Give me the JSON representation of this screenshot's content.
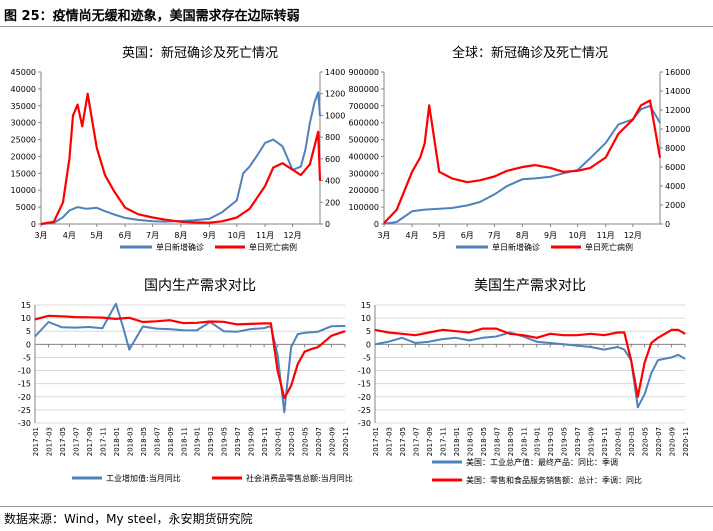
{
  "header": {
    "figure_title": "图 25：疫情尚无缓和迹象，美国需求存在边际转弱"
  },
  "footer": {
    "source": "数据来源：Wind，My steel，永安期货研究院"
  },
  "colors": {
    "blue": "#4f81bd",
    "red": "#ff0000",
    "axis": "#868686",
    "grid": "#d9d9d9"
  },
  "chart_data": [
    {
      "type": "line",
      "title": "英国：新冠确诊及死亡情况",
      "x_start": "2020-03-01",
      "x_end": "2020-12-31",
      "x_ticks": [
        "3月",
        "4月",
        "5月",
        "6月",
        "7月",
        "8月",
        "9月",
        "10月",
        "11月",
        "12月"
      ],
      "y_left": {
        "ylim": [
          0,
          45000
        ],
        "ticks": [
          "0",
          "5000",
          "10000",
          "15000",
          "20000",
          "25000",
          "30000",
          "35000",
          "40000",
          "45000"
        ]
      },
      "y_right": {
        "ylim": [
          0,
          1400
        ],
        "ticks": [
          "0",
          "200",
          "400",
          "600",
          "800",
          "1000",
          "1200",
          "1400"
        ]
      },
      "series": [
        {
          "name": "单日新增确诊",
          "color": "#4f81bd",
          "axis": "left",
          "x": [
            "2020-03-01",
            "2020-03-15",
            "2020-03-25",
            "2020-04-01",
            "2020-04-10",
            "2020-04-20",
            "2020-05-01",
            "2020-05-10",
            "2020-05-20",
            "2020-06-01",
            "2020-06-15",
            "2020-07-01",
            "2020-07-15",
            "2020-08-01",
            "2020-08-15",
            "2020-09-01",
            "2020-09-15",
            "2020-10-01",
            "2020-10-08",
            "2020-10-15",
            "2020-10-25",
            "2020-11-01",
            "2020-11-10",
            "2020-11-20",
            "2020-12-01",
            "2020-12-10",
            "2020-12-15",
            "2020-12-20",
            "2020-12-25",
            "2020-12-29",
            "2020-12-31"
          ],
          "values": [
            0,
            300,
            2000,
            4000,
            5000,
            4500,
            4800,
            3800,
            2800,
            1800,
            1200,
            800,
            700,
            900,
            1100,
            1500,
            3500,
            7000,
            15000,
            17000,
            21000,
            24000,
            25000,
            23000,
            16000,
            17000,
            22000,
            30000,
            36000,
            39000,
            32000
          ]
        },
        {
          "name": "单日死亡病例",
          "color": "#ff0000",
          "axis": "right",
          "x": [
            "2020-03-01",
            "2020-03-15",
            "2020-03-25",
            "2020-04-01",
            "2020-04-05",
            "2020-04-10",
            "2020-04-15",
            "2020-04-21",
            "2020-05-01",
            "2020-05-10",
            "2020-05-20",
            "2020-06-01",
            "2020-06-15",
            "2020-07-01",
            "2020-07-15",
            "2020-08-01",
            "2020-08-15",
            "2020-09-01",
            "2020-09-15",
            "2020-10-01",
            "2020-10-15",
            "2020-11-01",
            "2020-11-10",
            "2020-11-20",
            "2020-12-01",
            "2020-12-10",
            "2020-12-20",
            "2020-12-29",
            "2020-12-31"
          ],
          "values": [
            0,
            20,
            200,
            600,
            1000,
            1100,
            900,
            1200,
            700,
            450,
            300,
            150,
            90,
            60,
            40,
            20,
            15,
            12,
            25,
            60,
            140,
            350,
            520,
            560,
            500,
            450,
            550,
            850,
            400
          ]
        }
      ]
    },
    {
      "type": "line",
      "title": "全球：新冠确诊及死亡情况",
      "x_start": "2020-03-01",
      "x_end": "2020-12-31",
      "x_ticks": [
        "3月",
        "4月",
        "5月",
        "6月",
        "7月",
        "8月",
        "9月",
        "10月",
        "11月",
        "12月"
      ],
      "y_left": {
        "ylim": [
          0,
          900000
        ],
        "ticks": [
          "0",
          "100000",
          "200000",
          "300000",
          "400000",
          "500000",
          "600000",
          "700000",
          "800000",
          "900000"
        ]
      },
      "y_right": {
        "ylim": [
          0,
          16000
        ],
        "ticks": [
          "0",
          "2000",
          "4000",
          "6000",
          "8000",
          "10000",
          "12000",
          "14000",
          "16000"
        ]
      },
      "series": [
        {
          "name": "单日新增确诊",
          "color": "#4f81bd",
          "axis": "left",
          "x": [
            "2020-03-01",
            "2020-03-15",
            "2020-04-01",
            "2020-04-15",
            "2020-05-01",
            "2020-05-15",
            "2020-06-01",
            "2020-06-15",
            "2020-07-01",
            "2020-07-15",
            "2020-08-01",
            "2020-08-15",
            "2020-09-01",
            "2020-09-15",
            "2020-10-01",
            "2020-10-15",
            "2020-11-01",
            "2020-11-15",
            "2020-12-01",
            "2020-12-10",
            "2020-12-20",
            "2020-12-31"
          ],
          "values": [
            2000,
            12000,
            75000,
            85000,
            90000,
            95000,
            110000,
            130000,
            175000,
            225000,
            265000,
            270000,
            280000,
            300000,
            320000,
            390000,
            480000,
            590000,
            620000,
            680000,
            700000,
            600000
          ]
        },
        {
          "name": "单日死亡病例",
          "color": "#ff0000",
          "axis": "right",
          "x": [
            "2020-03-01",
            "2020-03-15",
            "2020-04-01",
            "2020-04-10",
            "2020-04-15",
            "2020-04-20",
            "2020-05-01",
            "2020-05-15",
            "2020-06-01",
            "2020-06-15",
            "2020-07-01",
            "2020-07-15",
            "2020-08-01",
            "2020-08-15",
            "2020-09-01",
            "2020-09-15",
            "2020-10-01",
            "2020-10-15",
            "2020-11-01",
            "2020-11-15",
            "2020-12-01",
            "2020-12-10",
            "2020-12-20",
            "2020-12-31"
          ],
          "values": [
            100,
            1500,
            5500,
            7000,
            8500,
            12500,
            5500,
            4800,
            4400,
            4600,
            5000,
            5600,
            6000,
            6200,
            5900,
            5500,
            5600,
            5900,
            7000,
            9500,
            11000,
            12500,
            13000,
            7000
          ]
        }
      ]
    },
    {
      "type": "line",
      "title": "国内生产需求对比",
      "x_labels": [
        "2017-01",
        "2017-03",
        "2017-05",
        "2017-07",
        "2017-09",
        "2017-11",
        "2018-01",
        "2018-03",
        "2018-05",
        "2018-07",
        "2018-09",
        "2018-11",
        "2019-01",
        "2019-03",
        "2019-05",
        "2019-07",
        "2019-09",
        "2019-11",
        "2020-01",
        "2020-03",
        "2020-05",
        "2020-07",
        "2020-09",
        "2020-11"
      ],
      "ylim": [
        -30,
        15
      ],
      "y_ticks": [
        "-30",
        "-25",
        "-20",
        "-15",
        "-10",
        "-5",
        "0",
        "5",
        "10",
        "15"
      ],
      "series": [
        {
          "name": "工业增加值:当月同比",
          "color": "#4f81bd",
          "x": [
            "2017-01",
            "2017-03",
            "2017-05",
            "2017-07",
            "2017-09",
            "2017-11",
            "2018-01",
            "2018-02",
            "2018-03",
            "2018-05",
            "2018-07",
            "2018-09",
            "2018-11",
            "2019-01",
            "2019-03",
            "2019-05",
            "2019-07",
            "2019-09",
            "2019-11",
            "2019-12",
            "2020-01",
            "2020-02",
            "2020-03",
            "2020-04",
            "2020-05",
            "2020-07",
            "2020-09",
            "2020-11"
          ],
          "values": [
            3,
            8.5,
            6.5,
            6.4,
            6.6,
            6.1,
            15.5,
            7.2,
            -2,
            6.8,
            6,
            5.8,
            5.4,
            5.3,
            8.5,
            5,
            4.8,
            5.8,
            6.2,
            6.9,
            -4,
            -25.9,
            -1.1,
            3.9,
            4.4,
            4.8,
            6.9,
            7
          ]
        },
        {
          "name": "社会消费品零售总额:当月同比",
          "color": "#ff0000",
          "x": [
            "2017-01",
            "2017-03",
            "2017-05",
            "2017-07",
            "2017-09",
            "2017-11",
            "2018-01",
            "2018-03",
            "2018-05",
            "2018-07",
            "2018-09",
            "2018-11",
            "2019-01",
            "2019-03",
            "2019-05",
            "2019-07",
            "2019-09",
            "2019-11",
            "2019-12",
            "2020-01",
            "2020-02",
            "2020-03",
            "2020-04",
            "2020-05",
            "2020-06",
            "2020-07",
            "2020-09",
            "2020-11"
          ],
          "values": [
            9.5,
            10.9,
            10.7,
            10.4,
            10.3,
            10.2,
            9.7,
            10.1,
            8.5,
            8.8,
            9.2,
            8.1,
            8.2,
            8.7,
            8.6,
            7.6,
            7.8,
            8,
            8,
            -10,
            -20.5,
            -15.8,
            -7.5,
            -2.8,
            -1.8,
            -1.1,
            3.3,
            5
          ]
        }
      ],
      "legend": "bottom"
    },
    {
      "type": "line",
      "title": "美国生产需求对比",
      "x_labels": [
        "2017-01",
        "2017-03",
        "2017-05",
        "2017-07",
        "2017-09",
        "2017-11",
        "2018-01",
        "2018-03",
        "2018-05",
        "2018-07",
        "2018-09",
        "2018-11",
        "2019-01",
        "2019-03",
        "2019-05",
        "2019-07",
        "2019-09",
        "2019-11",
        "2020-01",
        "2020-03",
        "2020-05",
        "2020-07",
        "2020-09",
        "2020-11"
      ],
      "ylim": [
        -30,
        15
      ],
      "y_ticks": [
        "-30",
        "-25",
        "-20",
        "-15",
        "-10",
        "-5",
        "0",
        "5",
        "10",
        "15"
      ],
      "series": [
        {
          "name": "美国：工业总产值：最终产品：同比：季调",
          "color": "#4f81bd",
          "x": [
            "2017-01",
            "2017-03",
            "2017-05",
            "2017-07",
            "2017-09",
            "2017-11",
            "2018-01",
            "2018-03",
            "2018-05",
            "2018-07",
            "2018-09",
            "2018-11",
            "2019-01",
            "2019-03",
            "2019-05",
            "2019-07",
            "2019-09",
            "2019-11",
            "2020-01",
            "2020-02",
            "2020-03",
            "2020-04",
            "2020-05",
            "2020-06",
            "2020-07",
            "2020-09",
            "2020-10",
            "2020-11"
          ],
          "values": [
            0,
            1,
            2.5,
            0.5,
            1,
            2,
            2.5,
            1.5,
            2.5,
            3,
            4.5,
            3,
            1,
            0.5,
            0,
            -0.5,
            -1,
            -2,
            -1,
            -2,
            -6,
            -24,
            -19,
            -11,
            -6,
            -5,
            -4,
            -5.5
          ]
        },
        {
          "name": "美国：零售和食品服务销售额：总计：季调：同比",
          "color": "#ff0000",
          "x": [
            "2017-01",
            "2017-03",
            "2017-05",
            "2017-07",
            "2017-09",
            "2017-11",
            "2018-01",
            "2018-03",
            "2018-05",
            "2018-07",
            "2018-09",
            "2018-11",
            "2019-01",
            "2019-03",
            "2019-05",
            "2019-07",
            "2019-09",
            "2019-11",
            "2020-01",
            "2020-02",
            "2020-03",
            "2020-04",
            "2020-05",
            "2020-06",
            "2020-07",
            "2020-09",
            "2020-10",
            "2020-11"
          ],
          "values": [
            5.5,
            4.5,
            4,
            3.5,
            4.5,
            5.5,
            5,
            4.5,
            6,
            6,
            4,
            3.5,
            2.5,
            4,
            3.5,
            3.5,
            4,
            3.5,
            4.5,
            4.5,
            -6,
            -20,
            -7,
            0.5,
            2.5,
            5.5,
            5.5,
            4
          ]
        }
      ],
      "legend": "bottom"
    }
  ]
}
